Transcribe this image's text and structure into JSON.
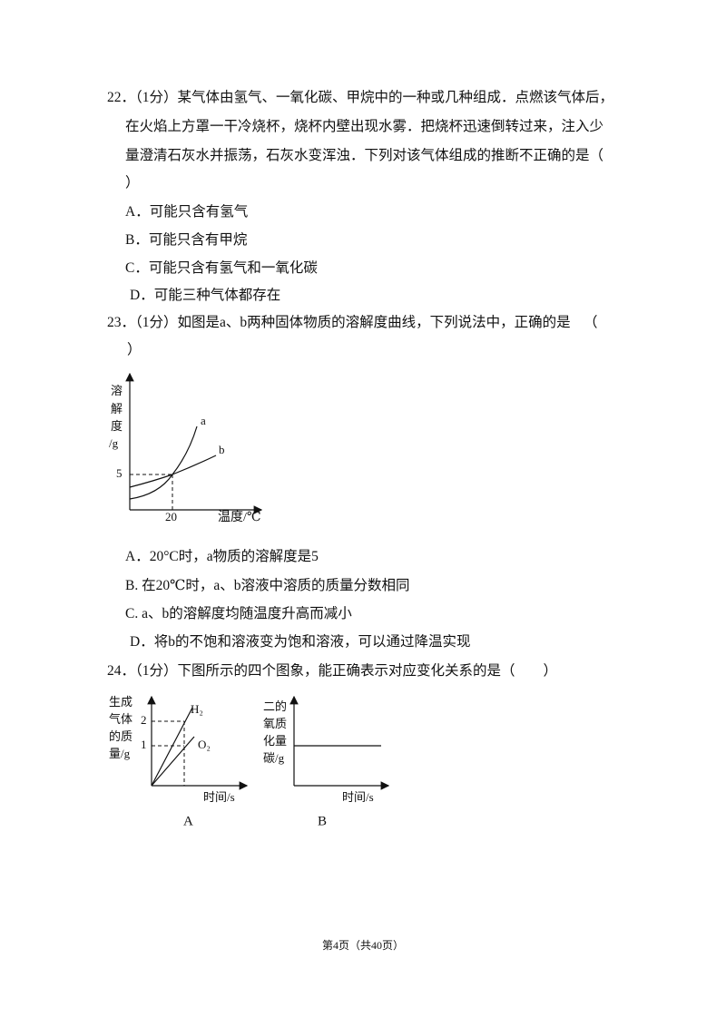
{
  "questions": [
    {
      "lines": [
        "22．（1分）某气体由氢气、一氧化碳、甲烷中的一种或几种组成．点燃该气体后，",
        "在火焰上方罩一干冷烧杯，烧杯内壁出现水雾．把烧杯迅速倒转过来，注入少",
        "量澄清石灰水并振荡，石灰水变浑浊．下列对该气体组成的推断不正确的是（",
        "）"
      ],
      "options": [
        "A．可能只含有氢气",
        "B．可能只含有甲烷",
        "C．可能只含有氢气和一氧化碳",
        "D．可能三种气体都存在"
      ]
    },
    {
      "lines": [
        "23．（1分）如图是a、b两种固体物质的溶解度曲线，下列说法中，正确的是",
        "（",
        "）"
      ],
      "figure": {
        "y_label": [
          "溶",
          "解",
          "度",
          "/g"
        ],
        "y_tick": "5",
        "x_tick": "20",
        "x_label": "温度/℃",
        "curve_labels": [
          "a",
          "b"
        ]
      },
      "options": [
        "A．20°C时，a物质的溶解度是5",
        "B. 在20℃时，a、b溶液中溶质的质量分数相同",
        "C. a、b的溶解度均随温度升高而减小",
        "D．将b的不饱和溶液变为饱和溶液，可以通过降温实现"
      ]
    },
    {
      "lines": [
        "24．（1分）下图所示的四个图象，能正确表示对应变化关系的是（　　）"
      ],
      "figures": [
        {
          "y_label": [
            "生成",
            "气体",
            "的质",
            "量/g"
          ],
          "y_ticks": [
            "2",
            "1"
          ],
          "curve_labels": [
            "H₂",
            "O₂"
          ],
          "x_label": "时间/s",
          "caption": "A"
        },
        {
          "y_label": [
            "二的",
            "氧质",
            "化量",
            "碳/g"
          ],
          "x_label": "时间/s",
          "caption": "B"
        }
      ]
    }
  ],
  "footer": "第4页（共40页）"
}
